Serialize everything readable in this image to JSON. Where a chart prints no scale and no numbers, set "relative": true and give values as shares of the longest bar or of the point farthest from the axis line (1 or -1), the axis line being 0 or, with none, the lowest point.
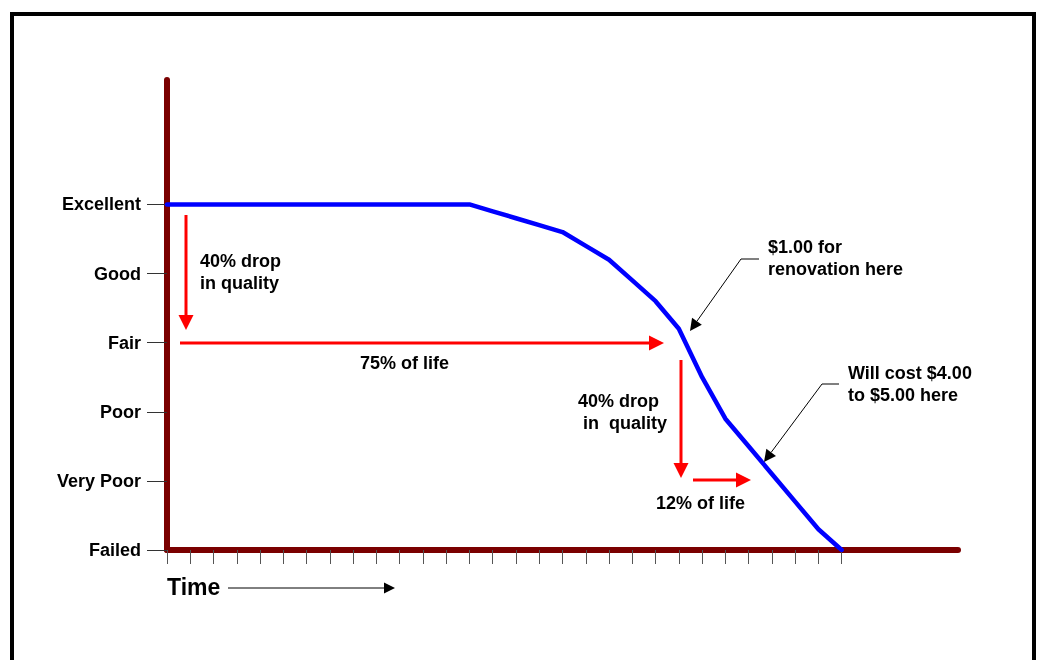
{
  "chart_data": {
    "type": "line",
    "categories": [
      null,
      null,
      null,
      null,
      null,
      null,
      null,
      null,
      null,
      null,
      null,
      null,
      null,
      null,
      null,
      null,
      null,
      null,
      null,
      null,
      null,
      null,
      null,
      null,
      null,
      null,
      null,
      null,
      null,
      null,
      null,
      null,
      null,
      null,
      null
    ],
    "series": [
      {
        "color": "#0000ff",
        "values": [
          1,
          1,
          1,
          1,
          1,
          1,
          1,
          1,
          1,
          1,
          1,
          1,
          1,
          1,
          0.98,
          0.96,
          0.94,
          0.92,
          0.88,
          0.84,
          0.78,
          0.72,
          0.64,
          0.5,
          0.38,
          0.3,
          0.22,
          0.14,
          0.06,
          0,
          null,
          null,
          null,
          null,
          null
        ]
      }
    ],
    "relative": true,
    "xlabel": "Time",
    "annotations": [
      "40% drop\nin quality",
      "75% of life",
      "$1.00 for\nrenovation here",
      "Will cost $4.00\nto $5.00 here",
      "40% drop\n in  quality",
      "12% of life",
      "Excellent",
      "Good",
      "Fair",
      "Poor",
      "Very Poor",
      "Failed"
    ],
    "marker": "none",
    "line_style": "solid"
  }
}
